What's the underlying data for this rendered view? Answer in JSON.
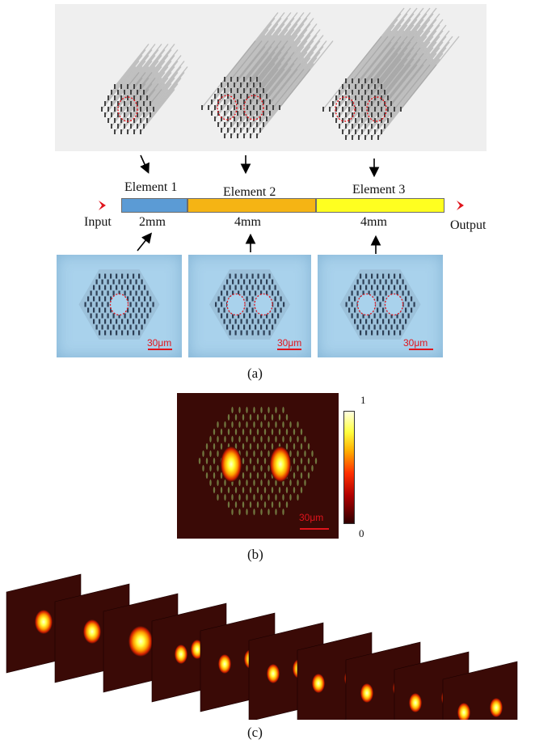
{
  "panel_a": {
    "label": "(a)",
    "elements": [
      {
        "name": "Element 1",
        "length": "2mm",
        "color": "#5b9bd5"
      },
      {
        "name": "Element 2",
        "length": "4mm",
        "color": "#f5b414"
      },
      {
        "name": "Element 3",
        "length": "4mm",
        "color": "#ffff20"
      }
    ],
    "input_label": "Input",
    "output_label": "Output",
    "scale_bars": [
      "30μm",
      "30μm",
      "30μm"
    ]
  },
  "panel_b": {
    "label": "(b)",
    "colorbar_max": "1",
    "colorbar_min": "0",
    "scale_bar": "30μm"
  },
  "panel_c": {
    "label": "(c)"
  },
  "colors": {
    "background_dark": "#3a0a06",
    "accent_red": "#e0141c",
    "render_bg": "#efefef",
    "photo_bg": "#a9d2ec"
  }
}
